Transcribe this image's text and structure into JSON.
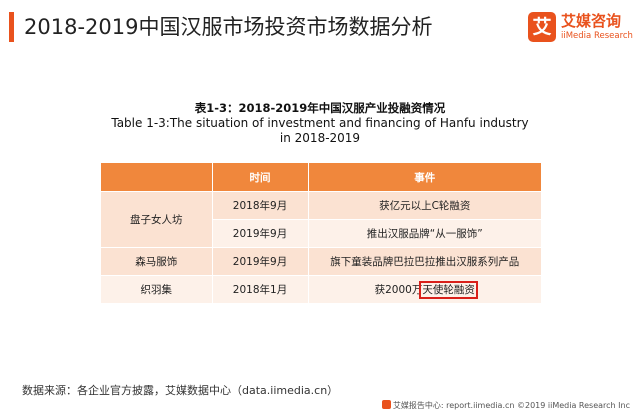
{
  "colors": {
    "accent": "#e9521d",
    "header": "#f0873c",
    "row_a": "#fbe2d2",
    "row_b": "#fdf1e9",
    "highlight": "#d9201a"
  },
  "header": {
    "title": "2018-2019中国汉服市场投资市场数据分析"
  },
  "logo": {
    "mark": "艾",
    "name_cn": "艾媒咨询",
    "name_en": "iiMedia Research"
  },
  "table": {
    "caption_cn": "表1-3：2018-2019年中国汉服产业投融资情况",
    "caption_en_line1": "Table 1-3:The situation of investment and financing of Hanfu industry",
    "caption_en_line2": "in 2018-2019",
    "columns": [
      "",
      "时间",
      "事件"
    ],
    "rows": [
      {
        "company": "盘子女人坊",
        "time": "2018年9月",
        "event": "获亿元以上C轮融资"
      },
      {
        "company": "",
        "time": "2019年9月",
        "event": "推出汉服品牌“从一服饰”"
      },
      {
        "company": "森马服饰",
        "time": "2019年9月",
        "event": "旗下童装品牌巴拉巴拉推出汉服系列产品"
      },
      {
        "company": "织羽集",
        "time": "2018年1月",
        "event_prefix": "获2000万",
        "event_highlight": "天使轮融资"
      }
    ]
  },
  "source": "数据来源：各企业官方披露，艾媒数据中心（data.iimedia.cn）",
  "footer": {
    "text": "艾媒报告中心: report.iimedia.cn  ©2019  iiMedia Research  Inc"
  }
}
